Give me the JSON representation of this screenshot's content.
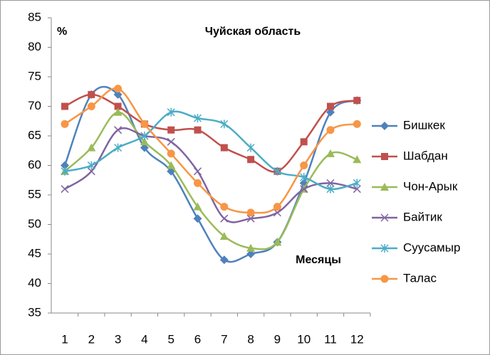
{
  "chart_data": {
    "type": "line",
    "title": "Чуйская область",
    "y_label": "%",
    "x_label": "Месяцы",
    "categories": [
      "1",
      "2",
      "3",
      "4",
      "5",
      "6",
      "7",
      "8",
      "9",
      "10",
      "11",
      "12"
    ],
    "ylim": [
      35,
      85
    ],
    "yticks": [
      35,
      40,
      45,
      50,
      55,
      60,
      65,
      70,
      75,
      80,
      85
    ],
    "legend": "right",
    "smooth": true,
    "series": [
      {
        "name": "Бишкек",
        "color": "#4F81BD",
        "marker": "diamond",
        "values": [
          60,
          72,
          72,
          63,
          59,
          51,
          44,
          45,
          47,
          57,
          69,
          71
        ]
      },
      {
        "name": "Шабдан",
        "color": "#C0504D",
        "marker": "square",
        "values": [
          70,
          72,
          70,
          67,
          66,
          66,
          63,
          61,
          59,
          64,
          70,
          71
        ]
      },
      {
        "name": "Чон-Арык",
        "color": "#9BBB59",
        "marker": "triangle",
        "values": [
          59,
          63,
          69,
          64,
          60,
          53,
          48,
          46,
          47,
          56,
          62,
          61
        ]
      },
      {
        "name": "Байтик",
        "color": "#8064A2",
        "marker": "x",
        "values": [
          56,
          59,
          66,
          65,
          64,
          59,
          51,
          51,
          52,
          56,
          57,
          56
        ]
      },
      {
        "name": "Суусамыр",
        "color": "#4BACC6",
        "marker": "star",
        "values": [
          59,
          60,
          63,
          65,
          69,
          68,
          67,
          63,
          59,
          58,
          56,
          57
        ]
      },
      {
        "name": "Талас",
        "color": "#F79646",
        "marker": "circle",
        "values": [
          67,
          70,
          73,
          67,
          62,
          57,
          53,
          52,
          53,
          60,
          66,
          67
        ]
      }
    ]
  }
}
